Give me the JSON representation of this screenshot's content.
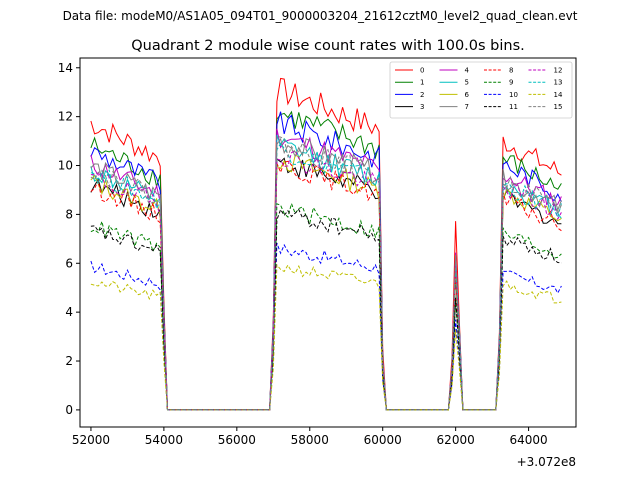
{
  "figure": {
    "suptitle": "Data file: modeM0/AS1A05_094T01_9000003204_21612cztM0_level2_quad_clean.evt"
  },
  "chart_data": {
    "type": "line",
    "title": "Quadrant 2 module wise count rates with 100.0s bins.",
    "xlabel": "",
    "ylabel": "",
    "x_offset_label": "+3.072e8",
    "xlim": [
      51700,
      65300
    ],
    "ylim": [
      -0.7,
      14.4
    ],
    "xticks": [
      52000,
      54000,
      56000,
      58000,
      60000,
      62000,
      64000
    ],
    "xtick_labels": [
      "52000",
      "54000",
      "56000",
      "58000",
      "60000",
      "62000",
      "64000"
    ],
    "yticks": [
      0,
      2,
      4,
      6,
      8,
      10,
      12,
      14
    ],
    "ytick_labels": [
      "0",
      "2",
      "4",
      "6",
      "8",
      "10",
      "12",
      "14"
    ],
    "grid": false,
    "legend_position": "top-right",
    "legend_columns": 4,
    "data_segments": [
      {
        "start": 52000,
        "end": 53900
      },
      {
        "start": 57100,
        "end": 59900
      },
      {
        "start": 62000,
        "end": 62000
      },
      {
        "start": 63300,
        "end": 64900
      }
    ],
    "zero_ranges": [
      [
        54100,
        56900
      ],
      [
        60100,
        61800
      ],
      [
        62200,
        63100
      ]
    ],
    "series": [
      {
        "name": "0",
        "color": "#ff0000",
        "dashed": false,
        "levels": [
          11.2,
          12.5,
          7.2,
          10.5
        ]
      },
      {
        "name": "1",
        "color": "#008000",
        "dashed": false,
        "levels": [
          10.3,
          11.6,
          5.5,
          9.8
        ]
      },
      {
        "name": "2",
        "color": "#0000ff",
        "dashed": false,
        "levels": [
          10.1,
          11.2,
          6.0,
          9.6
        ]
      },
      {
        "name": "3",
        "color": "#000000",
        "dashed": false,
        "levels": [
          8.8,
          9.7,
          5.0,
          8.3
        ]
      },
      {
        "name": "4",
        "color": "#bf00bf",
        "dashed": false,
        "levels": [
          9.6,
          10.7,
          6.0,
          9.2
        ]
      },
      {
        "name": "5",
        "color": "#00bfbf",
        "dashed": false,
        "levels": [
          9.3,
          10.3,
          5.8,
          8.8
        ]
      },
      {
        "name": "6",
        "color": "#bfbf00",
        "dashed": false,
        "levels": [
          8.9,
          9.8,
          5.5,
          8.5
        ]
      },
      {
        "name": "7",
        "color": "#808080",
        "dashed": false,
        "levels": [
          9.5,
          10.5,
          5.8,
          9.0
        ]
      },
      {
        "name": "8",
        "color": "#ff0000",
        "dashed": true,
        "levels": [
          8.7,
          9.6,
          5.2,
          8.2
        ]
      },
      {
        "name": "9",
        "color": "#008000",
        "dashed": true,
        "levels": [
          7.2,
          7.9,
          4.3,
          6.9
        ]
      },
      {
        "name": "10",
        "color": "#0000ff",
        "dashed": true,
        "levels": [
          5.6,
          6.3,
          3.6,
          5.3
        ]
      },
      {
        "name": "11",
        "color": "#000000",
        "dashed": true,
        "levels": [
          7.0,
          7.7,
          4.2,
          6.7
        ]
      },
      {
        "name": "12",
        "color": "#bf00bf",
        "dashed": true,
        "levels": [
          9.1,
          10.0,
          5.6,
          8.7
        ]
      },
      {
        "name": "13",
        "color": "#00bfbf",
        "dashed": true,
        "levels": [
          9.3,
          10.2,
          5.7,
          8.8
        ]
      },
      {
        "name": "14",
        "color": "#bfbf00",
        "dashed": true,
        "levels": [
          5.0,
          5.6,
          3.2,
          4.9
        ]
      },
      {
        "name": "15",
        "color": "#808080",
        "dashed": true,
        "levels": [
          9.4,
          10.4,
          5.8,
          9.0
        ]
      }
    ]
  }
}
